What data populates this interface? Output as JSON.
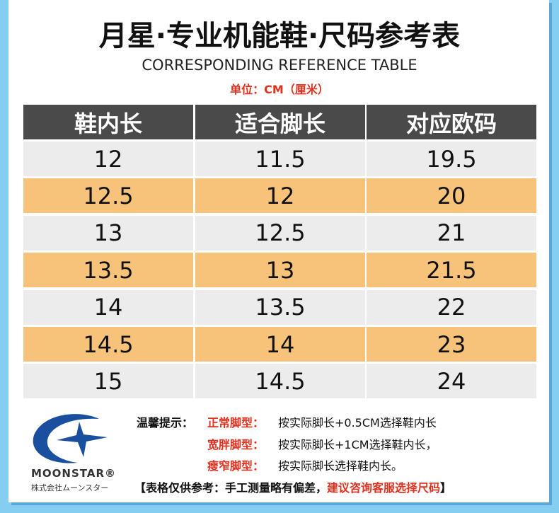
{
  "header": {
    "title": "月星·专业机能鞋·尺码参考表",
    "subtitle": "CORRESPONDING REFERENCE TABLE",
    "unit": "单位：CM（厘米）"
  },
  "table": {
    "headers": [
      "鞋内长",
      "适合脚长",
      "对应欧码"
    ],
    "rows": [
      [
        "12",
        "11.5",
        "19.5"
      ],
      [
        "12.5",
        "12",
        "20"
      ],
      [
        "13",
        "12.5",
        "21"
      ],
      [
        "13.5",
        "13",
        "21.5"
      ],
      [
        "14",
        "13.5",
        "22"
      ],
      [
        "14.5",
        "14",
        "23"
      ],
      [
        "15",
        "14.5",
        "24"
      ]
    ]
  },
  "notes": {
    "heading": "温馨提示：",
    "items": [
      {
        "label": "正常脚型：",
        "text": "按实际脚长+0.5CM选择鞋内长"
      },
      {
        "label": "宽胖脚型：",
        "text": "按实际脚长+1CM选择鞋内长，"
      },
      {
        "label": "瘦窄脚型：",
        "text": "按实际脚长选择鞋内长。"
      }
    ],
    "footer": {
      "start": "【表格仅供参考：手工测量略有偏差，",
      "highlight": "建议咨询客服选择尺码",
      "end": "】"
    }
  },
  "logo": {
    "name": "MOONSTAR®",
    "company": "株式会社ムーンスター"
  }
}
